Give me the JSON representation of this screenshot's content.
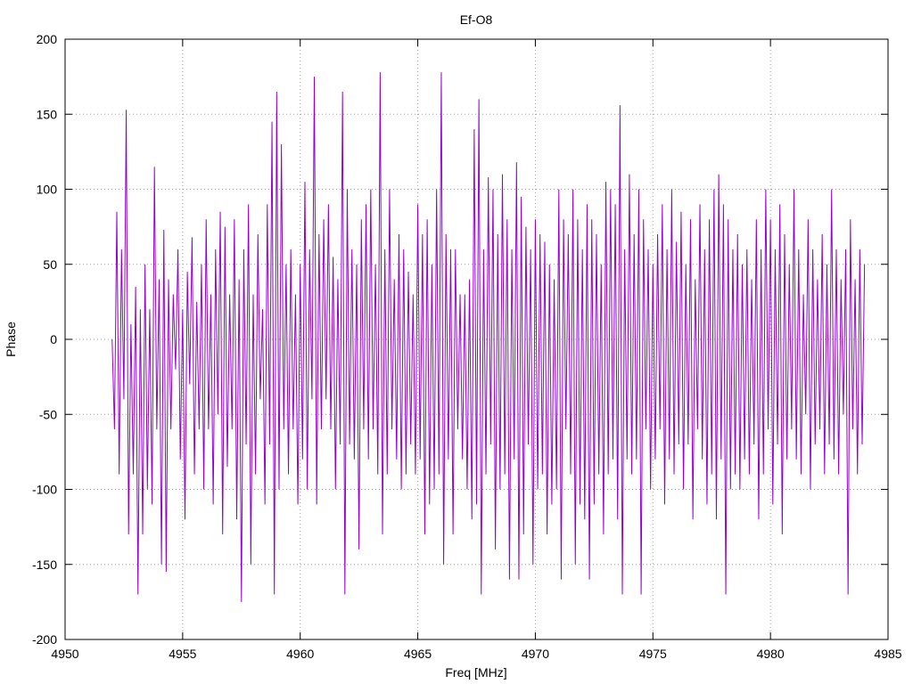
{
  "chart_data": {
    "type": "line",
    "title": "Ef-O8",
    "xlabel": "Freq [MHz]",
    "ylabel": "Phase",
    "xlim": [
      4950,
      4985
    ],
    "ylim": [
      -200,
      200
    ],
    "xticks": [
      4950,
      4955,
      4960,
      4965,
      4970,
      4975,
      4980,
      4985
    ],
    "yticks": [
      -200,
      -150,
      -100,
      -50,
      0,
      50,
      100,
      150,
      200
    ],
    "grid": true,
    "series": [
      {
        "color": "#9400d3",
        "x": [
          4952.0,
          4952.1,
          4952.2,
          4952.3,
          4952.4,
          4952.5,
          4952.6,
          4952.7,
          4952.8,
          4952.9,
          4953.0,
          4953.1,
          4953.2,
          4953.3,
          4953.4,
          4953.5,
          4953.6,
          4953.7,
          4953.8,
          4953.9,
          4954.0,
          4954.1,
          4954.2,
          4954.3,
          4954.4,
          4954.5,
          4954.6,
          4954.7,
          4954.8,
          4954.9,
          4955.0,
          4955.1,
          4955.2,
          4955.3,
          4955.4,
          4955.5,
          4955.6,
          4955.7,
          4955.8,
          4955.9,
          4956.0,
          4956.1,
          4956.2,
          4956.3,
          4956.4,
          4956.5,
          4956.6,
          4956.7,
          4956.8,
          4956.9,
          4957.0,
          4957.1,
          4957.2,
          4957.3,
          4957.4,
          4957.5,
          4957.6,
          4957.7,
          4957.8,
          4957.9,
          4958.0,
          4958.1,
          4958.2,
          4958.3,
          4958.4,
          4958.5,
          4958.6,
          4958.7,
          4958.8,
          4958.9,
          4959.0,
          4959.1,
          4959.2,
          4959.3,
          4959.4,
          4959.5,
          4959.6,
          4959.7,
          4959.8,
          4959.9,
          4960.0,
          4960.1,
          4960.2,
          4960.3,
          4960.4,
          4960.5,
          4960.6,
          4960.7,
          4960.8,
          4960.9,
          4961.0,
          4961.1,
          4961.2,
          4961.3,
          4961.4,
          4961.5,
          4961.6,
          4961.7,
          4961.8,
          4961.9,
          4962.0,
          4962.1,
          4962.2,
          4962.3,
          4962.4,
          4962.5,
          4962.6,
          4962.7,
          4962.8,
          4962.9,
          4963.0,
          4963.1,
          4963.2,
          4963.3,
          4963.4,
          4963.5,
          4963.6,
          4963.7,
          4963.8,
          4963.9,
          4964.0,
          4964.1,
          4964.2,
          4964.3,
          4964.4,
          4964.5,
          4964.6,
          4964.7,
          4964.8,
          4964.9,
          4965.0,
          4965.1,
          4965.2,
          4965.3,
          4965.4,
          4965.5,
          4965.6,
          4965.7,
          4965.8,
          4965.9,
          4966.0,
          4966.1,
          4966.2,
          4966.3,
          4966.4,
          4966.5,
          4966.6,
          4966.7,
          4966.8,
          4966.9,
          4967.0,
          4967.1,
          4967.2,
          4967.3,
          4967.4,
          4967.5,
          4967.6,
          4967.7,
          4967.8,
          4967.9,
          4968.0,
          4968.1,
          4968.2,
          4968.3,
          4968.4,
          4968.5,
          4968.6,
          4968.7,
          4968.8,
          4968.9,
          4969.0,
          4969.1,
          4969.2,
          4969.3,
          4969.4,
          4969.5,
          4969.6,
          4969.7,
          4969.8,
          4969.9,
          4970.0,
          4970.1,
          4970.2,
          4970.3,
          4970.4,
          4970.5,
          4970.6,
          4970.7,
          4970.8,
          4970.9,
          4971.0,
          4971.1,
          4971.2,
          4971.3,
          4971.4,
          4971.5,
          4971.6,
          4971.7,
          4971.8,
          4971.9,
          4972.0,
          4972.1,
          4972.2,
          4972.3,
          4972.4,
          4972.5,
          4972.6,
          4972.7,
          4972.8,
          4972.9,
          4973.0,
          4973.1,
          4973.2,
          4973.3,
          4973.4,
          4973.5,
          4973.6,
          4973.7,
          4973.8,
          4973.9,
          4974.0,
          4974.1,
          4974.2,
          4974.3,
          4974.4,
          4974.5,
          4974.6,
          4974.7,
          4974.8,
          4974.9,
          4975.0,
          4975.1,
          4975.2,
          4975.3,
          4975.4,
          4975.5,
          4975.6,
          4975.7,
          4975.8,
          4975.9,
          4976.0,
          4976.1,
          4976.2,
          4976.3,
          4976.4,
          4976.5,
          4976.6,
          4976.7,
          4976.8,
          4976.9,
          4977.0,
          4977.1,
          4977.2,
          4977.3,
          4977.4,
          4977.5,
          4977.6,
          4977.7,
          4977.8,
          4977.9,
          4978.0,
          4978.1,
          4978.2,
          4978.3,
          4978.4,
          4978.5,
          4978.6,
          4978.7,
          4978.8,
          4978.9,
          4979.0,
          4979.1,
          4979.2,
          4979.3,
          4979.4,
          4979.5,
          4979.6,
          4979.7,
          4979.8,
          4979.9,
          4980.0,
          4980.1,
          4980.2,
          4980.3,
          4980.4,
          4980.5,
          4980.6,
          4980.7,
          4980.8,
          4980.9,
          4981.0,
          4981.1,
          4981.2,
          4981.3,
          4981.4,
          4981.5,
          4981.6,
          4981.7,
          4981.8,
          4981.9,
          4982.0,
          4982.1,
          4982.2,
          4982.3,
          4982.4,
          4982.5,
          4982.6,
          4982.7,
          4982.8,
          4982.9,
          4983.0,
          4983.1,
          4983.2,
          4983.3,
          4983.4,
          4983.5,
          4983.6,
          4983.7,
          4983.8,
          4983.9,
          4984.0
        ],
        "y": [
          0,
          -60,
          85,
          -90,
          60,
          -40,
          153,
          -130,
          10,
          -90,
          35,
          -170,
          20,
          -130,
          50,
          -100,
          20,
          -110,
          115,
          -60,
          40,
          -150,
          73,
          -155,
          40,
          -60,
          30,
          -20,
          60,
          -80,
          20,
          -120,
          45,
          -30,
          68,
          -90,
          25,
          -60,
          50,
          -100,
          80,
          -60,
          30,
          -110,
          60,
          -50,
          85,
          -130,
          75,
          -85,
          30,
          -60,
          80,
          -120,
          40,
          -175,
          60,
          -70,
          90,
          -150,
          30,
          -90,
          70,
          -40,
          20,
          -110,
          90,
          -70,
          145,
          -170,
          165,
          -100,
          130,
          -60,
          50,
          -90,
          60,
          -60,
          30,
          -110,
          50,
          -80,
          105,
          -100,
          60,
          -40,
          175,
          -110,
          70,
          -60,
          80,
          -40,
          90,
          -60,
          55,
          -100,
          40,
          -70,
          165,
          -170,
          100,
          -70,
          60,
          -80,
          50,
          -140,
          80,
          -60,
          90,
          -80,
          100,
          -60,
          50,
          -90,
          178,
          -130,
          60,
          -90,
          100,
          -60,
          40,
          -80,
          70,
          -100,
          60,
          -90,
          45,
          -70,
          30,
          -90,
          90,
          -80,
          70,
          -130,
          80,
          -110,
          50,
          -100,
          100,
          -90,
          178,
          -150,
          70,
          -80,
          60,
          -130,
          60,
          -60,
          30,
          -80,
          30,
          -100,
          40,
          -120,
          140,
          -110,
          160,
          -170,
          60,
          -90,
          108,
          -70,
          100,
          -140,
          70,
          -100,
          110,
          -90,
          80,
          -160,
          60,
          -80,
          118,
          -160,
          95,
          -130,
          75,
          -70,
          60,
          -150,
          80,
          -100,
          70,
          -90,
          65,
          -130,
          50,
          -110,
          40,
          -100,
          100,
          -160,
          80,
          -60,
          70,
          -90,
          100,
          -150,
          80,
          -110,
          60,
          -120,
          90,
          -160,
          80,
          -110,
          70,
          -90,
          50,
          -130,
          105,
          -90,
          100,
          -80,
          90,
          -120,
          156,
          -170,
          60,
          -80,
          110,
          -90,
          70,
          -80,
          100,
          -170,
          80,
          -60,
          60,
          -100,
          50,
          -80,
          70,
          -60,
          90,
          -110,
          60,
          -80,
          100,
          -90,
          65,
          -70,
          85,
          -100,
          50,
          -70,
          80,
          -120,
          40,
          -60,
          90,
          -80,
          60,
          -110,
          80,
          -90,
          100,
          -120,
          110,
          -80,
          90,
          -170,
          80,
          -100,
          60,
          -90,
          70,
          -100,
          50,
          -80,
          60,
          -90,
          40,
          -70,
          80,
          -120,
          60,
          -90,
          100,
          -60,
          80,
          -110,
          60,
          -70,
          90,
          -130,
          70,
          -80,
          50,
          -60,
          100,
          -80,
          60,
          -90,
          30,
          -50,
          80,
          -100,
          60,
          -70,
          40,
          -60,
          70,
          -90,
          50,
          -70,
          100,
          -80,
          60,
          -90,
          40,
          -50,
          60,
          -170,
          80,
          -60,
          40,
          -90,
          60,
          -70,
          50
        ]
      }
    ]
  }
}
